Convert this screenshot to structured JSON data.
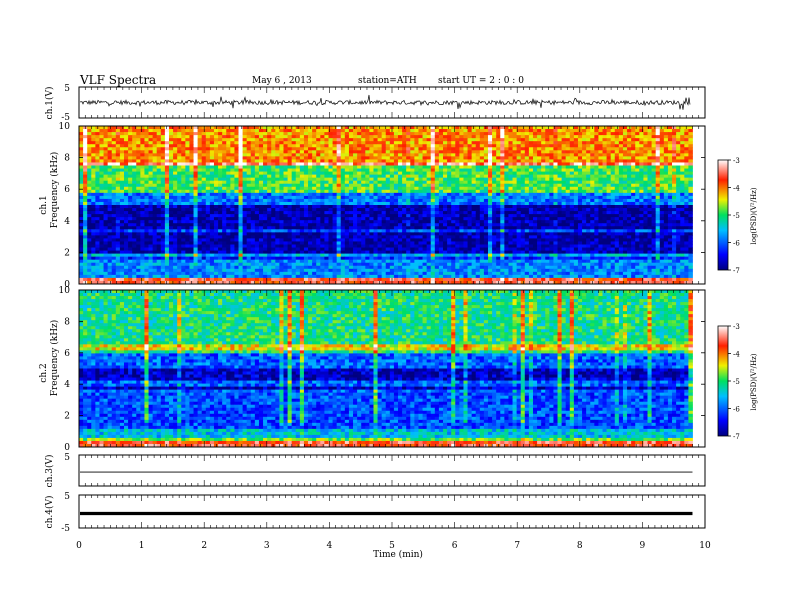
{
  "header": {
    "title": "VLF  Spectra",
    "date": "May 6  , 2013",
    "station": "station=ATH",
    "start": "start  UT  =   2  : 0  : 0"
  },
  "chart_data": [
    {
      "type": "line",
      "panel": "ch1-waveform",
      "ylabel": "ch.1(V)",
      "ylim": [
        -5,
        5
      ],
      "yticks": [
        "5",
        "-5"
      ],
      "xlim": [
        0,
        10
      ],
      "note": "dense noisy waveform around ~0 V, amplitude ~±1 V with sferic spikes"
    },
    {
      "type": "heatmap",
      "panel": "ch1-spectrogram",
      "ylabel_top": "ch.1",
      "ylabel": "Frequency  (kHz)",
      "ylim": [
        0,
        10
      ],
      "yticks": [
        "0",
        "2",
        "4",
        "6",
        "8",
        "10"
      ],
      "xlim": [
        0,
        9.8
      ],
      "colorbar": {
        "label": "log(PSD)(V²/Hz)",
        "range": [
          -7,
          -3
        ],
        "ticks": [
          "-3",
          "-4",
          "-5",
          "-6",
          "-7"
        ]
      },
      "bands": [
        {
          "f_low": 0,
          "f_high": 0.3,
          "logpsd": -3.6
        },
        {
          "f_low": 0.3,
          "f_high": 1.5,
          "logpsd": -5.8
        },
        {
          "f_low": 1.5,
          "f_high": 2.0,
          "logpsd": -6.3
        },
        {
          "f_low": 2.0,
          "f_high": 5.0,
          "logpsd": -6.8
        },
        {
          "f_low": 5.0,
          "f_high": 5.8,
          "logpsd": -5.9
        },
        {
          "f_low": 5.8,
          "f_high": 7.5,
          "logpsd": -4.9
        },
        {
          "f_low": 7.5,
          "f_high": 10.0,
          "logpsd": -4.1
        }
      ]
    },
    {
      "type": "heatmap",
      "panel": "ch2-spectrogram",
      "ylabel_top": "ch.2",
      "ylabel": "Frequency  (kHz)",
      "ylim": [
        0,
        10
      ],
      "yticks": [
        "0",
        "2",
        "4",
        "6",
        "8",
        "10"
      ],
      "xlim": [
        0,
        9.8
      ],
      "colorbar": {
        "label": "log(PSD)(V²/Hz)",
        "range": [
          -7,
          -3
        ],
        "ticks": [
          "-3",
          "-4",
          "-5",
          "-6",
          "-7"
        ]
      },
      "bands": [
        {
          "f_low": 0,
          "f_high": 0.3,
          "logpsd": -3.6
        },
        {
          "f_low": 0.3,
          "f_high": 1.2,
          "logpsd": -5.5
        },
        {
          "f_low": 1.2,
          "f_high": 3.5,
          "logpsd": -6.1
        },
        {
          "f_low": 3.5,
          "f_high": 5.0,
          "logpsd": -6.7
        },
        {
          "f_low": 5.0,
          "f_high": 6.0,
          "logpsd": -6.0
        },
        {
          "f_low": 6.0,
          "f_high": 10.0,
          "logpsd": -5.1
        }
      ]
    },
    {
      "type": "line",
      "panel": "ch3-waveform",
      "ylabel": "ch.3(V)",
      "ylim": [
        -5,
        5
      ],
      "yticks": [
        "5"
      ],
      "xlim": [
        0,
        10
      ],
      "values": [
        -0.5
      ]
    },
    {
      "type": "line",
      "panel": "ch4-waveform",
      "ylabel": "ch.4(V)",
      "ylim": [
        -5,
        5
      ],
      "yticks": [
        "5",
        "-5"
      ],
      "xlim": [
        0,
        10
      ],
      "values": [
        -0.6
      ]
    }
  ],
  "xaxis": {
    "label": "Time  (min)",
    "ticks": [
      "0",
      "1",
      "2",
      "3",
      "4",
      "5",
      "6",
      "7",
      "8",
      "9",
      "10"
    ],
    "range": [
      0,
      10
    ]
  }
}
